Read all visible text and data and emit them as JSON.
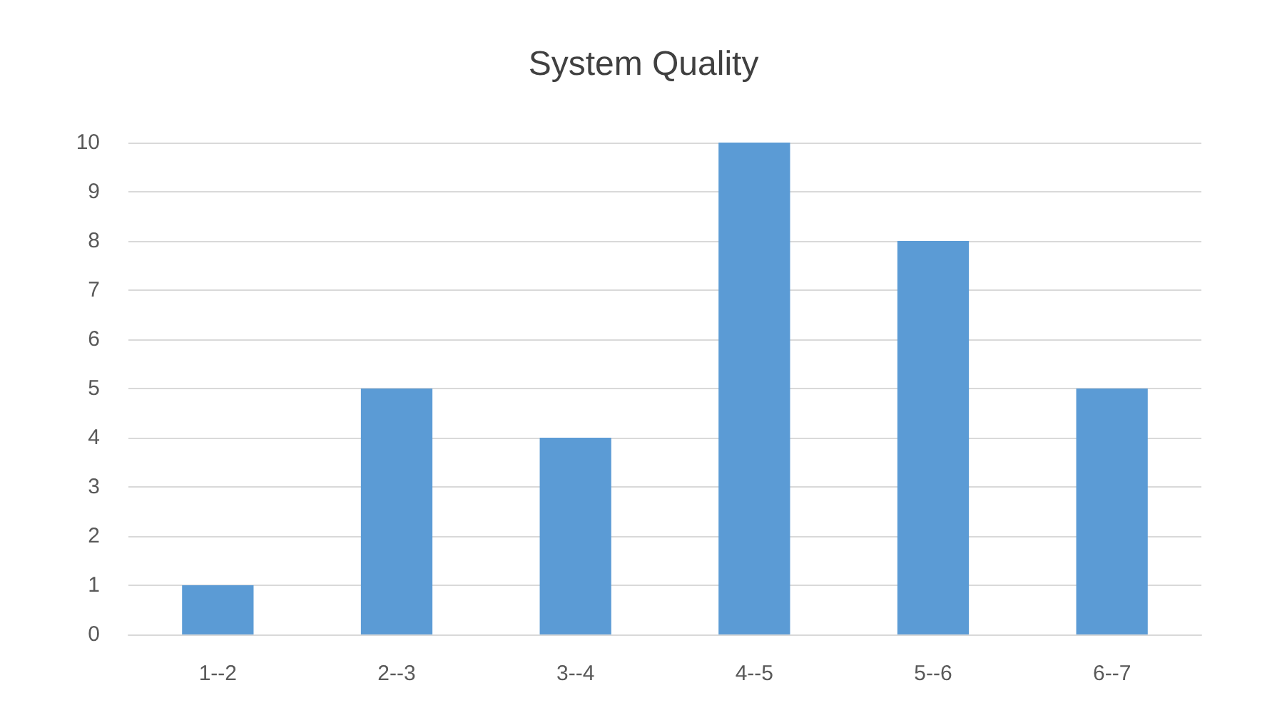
{
  "chart_data": {
    "type": "bar",
    "title": "System Quality",
    "categories": [
      "1--2",
      "2--3",
      "3--4",
      "4--5",
      "5--6",
      "6--7"
    ],
    "values": [
      1,
      5,
      4,
      10,
      8,
      5
    ],
    "color": "#5b9bd5",
    "ylim": [
      0,
      10
    ],
    "yticks": [
      0,
      1,
      2,
      3,
      4,
      5,
      6,
      7,
      8,
      9,
      10
    ],
    "grid": "y"
  }
}
